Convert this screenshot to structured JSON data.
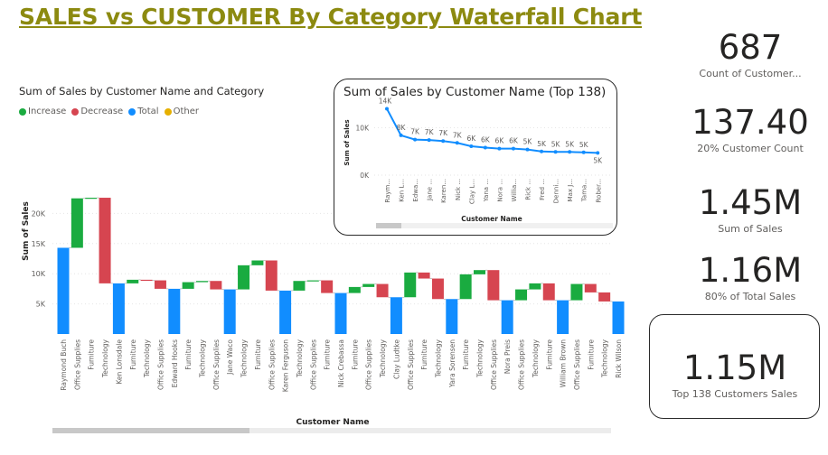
{
  "page": {
    "title": "SALES vs CUSTOMER By Category Waterfall Chart"
  },
  "waterfall": {
    "title": "Sum of Sales by Customer Name and Category",
    "legend": [
      {
        "label": "Increase",
        "color": "#1aab40"
      },
      {
        "label": "Decrease",
        "color": "#d64550"
      },
      {
        "label": "Total",
        "color": "#118dff"
      },
      {
        "label": "Other",
        "color": "#e6b000"
      }
    ]
  },
  "inset": {
    "title": "Sum of Sales by Customer Name (Top 138)"
  },
  "kpis": [
    {
      "value": "687",
      "label": "Count of Customer..."
    },
    {
      "value": "137.40",
      "label": "20% Customer Count"
    },
    {
      "value": "1.45M",
      "label": "Sum of Sales"
    },
    {
      "value": "1.16M",
      "label": "80% of Total Sales"
    },
    {
      "value": "1.15M",
      "label": "Top 138 Customers Sales"
    }
  ],
  "chart_data": [
    {
      "type": "bar",
      "subtype": "waterfall",
      "title": "Sum of Sales by Customer Name and Category",
      "xlabel": "Customer Name",
      "ylabel": "Sum of Sales",
      "ylim": [
        0,
        23000
      ],
      "yticks": [
        5000,
        10000,
        15000,
        20000
      ],
      "ytick_labels": [
        "5K",
        "10K",
        "15K",
        "20K"
      ],
      "grid": true,
      "legend_position": "top-left",
      "colors": {
        "increase": "#1aab40",
        "decrease": "#d64550",
        "total": "#118dff"
      },
      "bars": [
        {
          "label": "Raymond Buch",
          "kind": "total",
          "start": 0,
          "end": 14300
        },
        {
          "label": "Office Supplies",
          "kind": "increase",
          "start": 14300,
          "end": 22500
        },
        {
          "label": "Furniture",
          "kind": "increase",
          "start": 22500,
          "end": 22600
        },
        {
          "label": "Technology",
          "kind": "decrease",
          "start": 22600,
          "end": 8400
        },
        {
          "label": "Ken Lonsdale",
          "kind": "total",
          "start": 0,
          "end": 8400
        },
        {
          "label": "Furniture",
          "kind": "increase",
          "start": 8400,
          "end": 9000
        },
        {
          "label": "Technology",
          "kind": "decrease",
          "start": 9000,
          "end": 8900
        },
        {
          "label": "Office Supplies",
          "kind": "decrease",
          "start": 8900,
          "end": 7500
        },
        {
          "label": "Edward Hooks",
          "kind": "total",
          "start": 0,
          "end": 7500
        },
        {
          "label": "Furniture",
          "kind": "increase",
          "start": 7500,
          "end": 8600
        },
        {
          "label": "Technology",
          "kind": "increase",
          "start": 8600,
          "end": 8800
        },
        {
          "label": "Office Supplies",
          "kind": "decrease",
          "start": 8800,
          "end": 7400
        },
        {
          "label": "Jane Waco",
          "kind": "total",
          "start": 0,
          "end": 7400
        },
        {
          "label": "Technology",
          "kind": "increase",
          "start": 7400,
          "end": 11400
        },
        {
          "label": "Furniture",
          "kind": "increase",
          "start": 11400,
          "end": 12200
        },
        {
          "label": "Office Supplies",
          "kind": "decrease",
          "start": 12200,
          "end": 7200
        },
        {
          "label": "Karen Ferguson",
          "kind": "total",
          "start": 0,
          "end": 7200
        },
        {
          "label": "Technology",
          "kind": "increase",
          "start": 7200,
          "end": 8800
        },
        {
          "label": "Office Supplies",
          "kind": "increase",
          "start": 8800,
          "end": 8900
        },
        {
          "label": "Furniture",
          "kind": "decrease",
          "start": 8900,
          "end": 6800
        },
        {
          "label": "Nick Crebassa",
          "kind": "total",
          "start": 0,
          "end": 6800
        },
        {
          "label": "Furniture",
          "kind": "increase",
          "start": 6800,
          "end": 7800
        },
        {
          "label": "Office Supplies",
          "kind": "increase",
          "start": 7800,
          "end": 8300
        },
        {
          "label": "Technology",
          "kind": "decrease",
          "start": 8300,
          "end": 6100
        },
        {
          "label": "Clay Ludtke",
          "kind": "total",
          "start": 0,
          "end": 6100
        },
        {
          "label": "Office Supplies",
          "kind": "increase",
          "start": 6100,
          "end": 10200
        },
        {
          "label": "Furniture",
          "kind": "decrease",
          "start": 10200,
          "end": 9200
        },
        {
          "label": "Technology",
          "kind": "decrease",
          "start": 9200,
          "end": 5800
        },
        {
          "label": "Yara Sorensen",
          "kind": "total",
          "start": 0,
          "end": 5800
        },
        {
          "label": "Furniture",
          "kind": "increase",
          "start": 5800,
          "end": 9900
        },
        {
          "label": "Technology",
          "kind": "increase",
          "start": 9900,
          "end": 10600
        },
        {
          "label": "Office Supplies",
          "kind": "decrease",
          "start": 10600,
          "end": 5600
        },
        {
          "label": "Nora Preis",
          "kind": "total",
          "start": 0,
          "end": 5600
        },
        {
          "label": "Office Supplies",
          "kind": "increase",
          "start": 5600,
          "end": 7400
        },
        {
          "label": "Technology",
          "kind": "increase",
          "start": 7400,
          "end": 8400
        },
        {
          "label": "Furniture",
          "kind": "decrease",
          "start": 8400,
          "end": 5600
        },
        {
          "label": "William Brown",
          "kind": "total",
          "start": 0,
          "end": 5600
        },
        {
          "label": "Office Supplies",
          "kind": "increase",
          "start": 5600,
          "end": 8300
        },
        {
          "label": "Furniture",
          "kind": "decrease",
          "start": 8300,
          "end": 6900
        },
        {
          "label": "Technology",
          "kind": "decrease",
          "start": 6900,
          "end": 5400
        },
        {
          "label": "Rick Wilson",
          "kind": "total",
          "start": 0,
          "end": 5400
        }
      ]
    },
    {
      "type": "line",
      "title": "Sum of Sales by Customer Name (Top 138)",
      "xlabel": "Customer Name",
      "ylabel": "Sum of Sales",
      "ylim": [
        0,
        15000
      ],
      "yticks": [
        0,
        10000
      ],
      "ytick_labels": [
        "0K",
        "10K"
      ],
      "categories": [
        "Raym...",
        "Ken L...",
        "Edwa...",
        "Jane ...",
        "Karen...",
        "Nick ...",
        "Clay L...",
        "Yana ...",
        "Nora ...",
        "Willia...",
        "Rick ...",
        "Fred ...",
        "Denni...",
        "Max J...",
        "Tama...",
        "Rober..."
      ],
      "series": [
        {
          "values": [
            14000,
            8400,
            7500,
            7400,
            7200,
            6800,
            6100,
            5800,
            5600,
            5600,
            5400,
            5000,
            4900,
            4900,
            4800,
            4700
          ],
          "data_labels": [
            "14K",
            "8K",
            "7K",
            "7K",
            "7K",
            "7K",
            "6K",
            "6K",
            "6K",
            "6K",
            "5K",
            "5K",
            "5K",
            "5K",
            "5K",
            "5K"
          ]
        }
      ]
    }
  ]
}
